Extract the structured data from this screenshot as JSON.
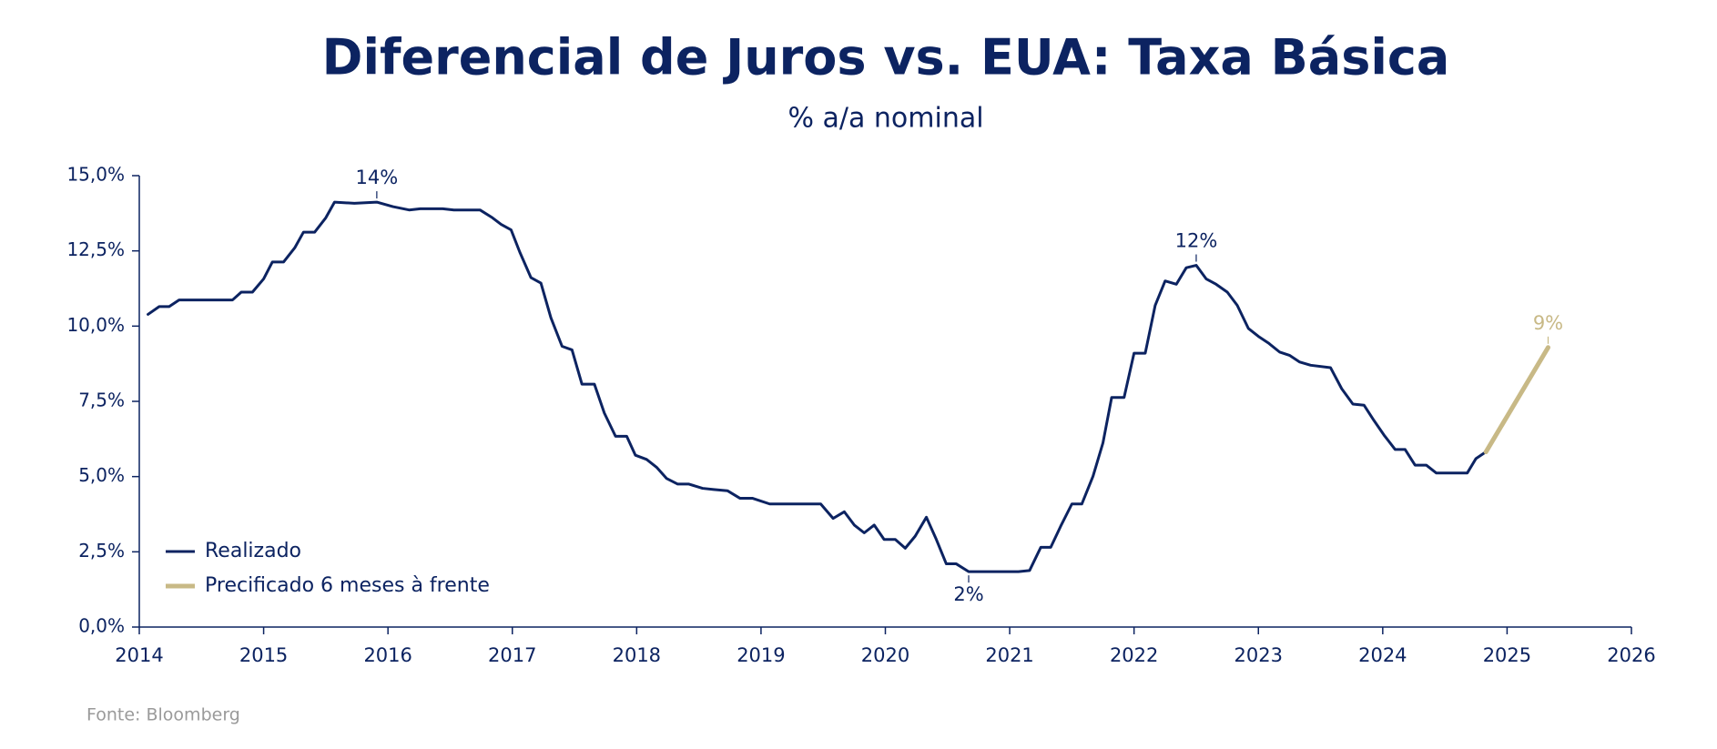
{
  "chart_data": {
    "type": "line",
    "title": "Diferencial de Juros vs. EUA: Taxa Básica",
    "subtitle": "% a/a nominal",
    "source": "Fonte: Bloomberg",
    "xlim": [
      2014,
      2026
    ],
    "xticks": [
      2014,
      2015,
      2016,
      2017,
      2018,
      2019,
      2020,
      2021,
      2022,
      2023,
      2024,
      2025,
      2026
    ],
    "ylim": [
      0,
      15
    ],
    "yticks": [
      {
        "value": 0,
        "label": "0,0%"
      },
      {
        "value": 2.5,
        "label": "2,5%"
      },
      {
        "value": 5,
        "label": "5,0%"
      },
      {
        "value": 7.5,
        "label": "7,5%"
      },
      {
        "value": 10,
        "label": "10,0%"
      },
      {
        "value": 12.5,
        "label": "12,5%"
      },
      {
        "value": 15,
        "label": "15,0%"
      }
    ],
    "grid": false,
    "legend": "lower left",
    "series": [
      {
        "name": "Realizado",
        "color": "#0c2361",
        "x": [
          2014.07,
          2014.16,
          2014.24,
          2014.32,
          2014.75,
          2014.82,
          2014.91,
          2015.0,
          2015.07,
          2015.16,
          2015.25,
          2015.32,
          2015.41,
          2015.5,
          2015.57,
          2015.73,
          2015.91,
          2016.04,
          2016.17,
          2016.26,
          2016.44,
          2016.53,
          2016.74,
          2016.84,
          2016.91,
          2016.99,
          2017.06,
          2017.15,
          2017.23,
          2017.31,
          2017.4,
          2017.48,
          2017.56,
          2017.66,
          2017.74,
          2017.83,
          2017.92,
          2017.99,
          2018.08,
          2018.16,
          2018.24,
          2018.33,
          2018.42,
          2018.53,
          2018.62,
          2018.73,
          2018.83,
          2018.93,
          2019.07,
          2019.38,
          2019.48,
          2019.58,
          2019.67,
          2019.75,
          2019.83,
          2019.91,
          2019.99,
          2020.08,
          2020.16,
          2020.24,
          2020.33,
          2020.41,
          2020.49,
          2020.57,
          2020.67,
          2021.07,
          2021.16,
          2021.25,
          2021.33,
          2021.41,
          2021.5,
          2021.58,
          2021.67,
          2021.75,
          2021.82,
          2021.92,
          2022.0,
          2022.09,
          2022.17,
          2022.25,
          2022.34,
          2022.42,
          2022.5,
          2022.58,
          2022.66,
          2022.75,
          2022.83,
          2022.92,
          2023.0,
          2023.08,
          2023.17,
          2023.25,
          2023.33,
          2023.42,
          2023.58,
          2023.67,
          2023.76,
          2023.85,
          2023.93,
          2024.01,
          2024.1,
          2024.18,
          2024.26,
          2024.35,
          2024.43,
          2024.68,
          2024.75,
          2024.83
        ],
        "values": [
          10.39,
          10.65,
          10.65,
          10.87,
          10.87,
          11.13,
          11.13,
          11.57,
          12.13,
          12.13,
          12.6,
          13.12,
          13.12,
          13.6,
          14.12,
          14.08,
          14.12,
          13.97,
          13.86,
          13.9,
          13.9,
          13.86,
          13.86,
          13.6,
          13.38,
          13.2,
          12.46,
          11.61,
          11.43,
          10.28,
          9.33,
          9.21,
          8.07,
          8.07,
          7.11,
          6.34,
          6.34,
          5.71,
          5.57,
          5.31,
          4.94,
          4.75,
          4.75,
          4.61,
          4.57,
          4.53,
          4.28,
          4.28,
          4.09,
          4.09,
          4.09,
          3.61,
          3.83,
          3.39,
          3.13,
          3.39,
          2.91,
          2.91,
          2.62,
          3.02,
          3.65,
          2.91,
          2.1,
          2.1,
          1.84,
          1.84,
          1.88,
          2.65,
          2.65,
          3.35,
          4.09,
          4.09,
          5.01,
          6.12,
          7.63,
          7.63,
          9.1,
          9.1,
          10.69,
          11.5,
          11.39,
          11.94,
          12.02,
          11.57,
          11.39,
          11.13,
          10.69,
          9.92,
          9.66,
          9.44,
          9.14,
          9.03,
          8.81,
          8.7,
          8.62,
          7.92,
          7.41,
          7.37,
          6.86,
          6.38,
          5.9,
          5.9,
          5.38,
          5.38,
          5.12,
          5.12,
          5.6,
          5.82
        ]
      },
      {
        "name": "Precificado 6 meses à frente",
        "color": "#c8b986",
        "x": [
          2024.83,
          2025.33
        ],
        "values": [
          5.82,
          9.29
        ]
      }
    ],
    "annotations": [
      {
        "text": "14%",
        "x": 2015.91,
        "y": 14.12,
        "color": "#0c2361"
      },
      {
        "text": "2%",
        "x": 2020.67,
        "y": 1.84,
        "color": "#0c2361"
      },
      {
        "text": "12%",
        "x": 2022.5,
        "y": 12.02,
        "color": "#0c2361"
      },
      {
        "text": "9%",
        "x": 2025.33,
        "y": 9.29,
        "color": "#c8b986"
      }
    ]
  }
}
